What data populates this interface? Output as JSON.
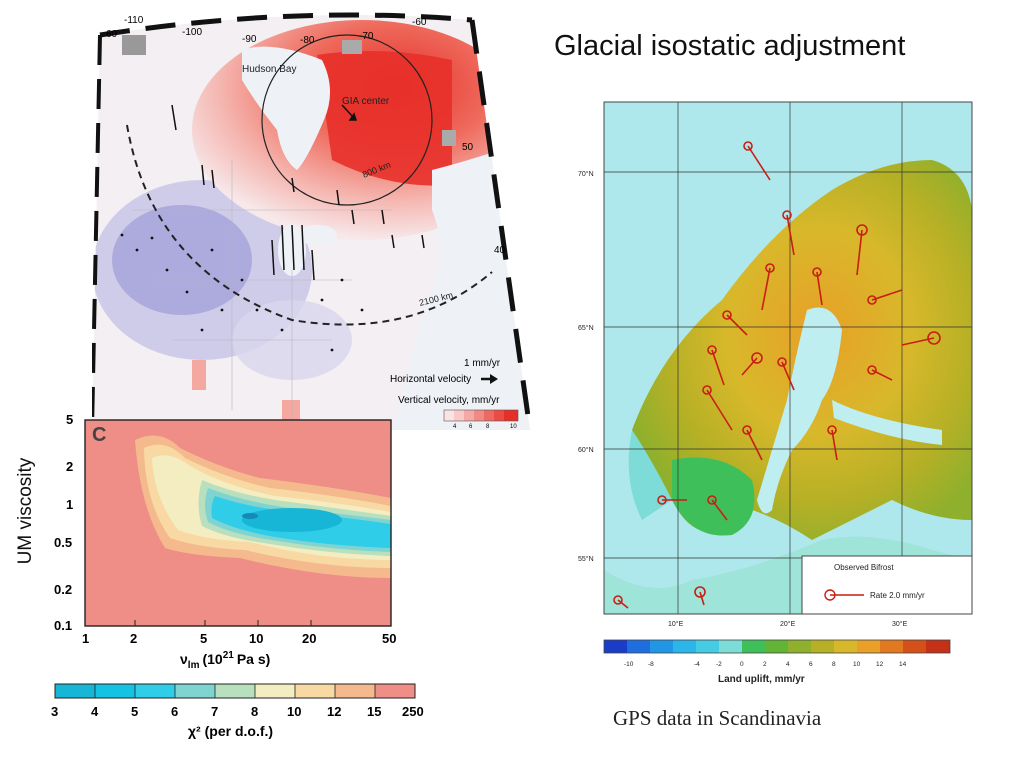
{
  "slide": {
    "title": "Glacial isostatic adjustment",
    "caption": "GPS data in Scandinavia",
    "side_label": "UM viscosity"
  },
  "north_america_map": {
    "lon_labels": [
      "-110",
      "-100",
      "-90",
      "-80",
      "-70",
      "-60"
    ],
    "lat_labels": [
      "60",
      "50",
      "40"
    ],
    "place_labels": [
      "Hudson Bay",
      "GIA center",
      "800 km",
      "2100 km"
    ],
    "legend": {
      "scale_text": "1 mm/yr",
      "horizontal": "Horizontal velocity",
      "vertical": "Vertical velocity, mm/yr",
      "ticks": [
        "4",
        "6",
        "8",
        "10"
      ]
    },
    "colors": {
      "uplift": "#e8302a",
      "subsidence": "#7c79c8",
      "land_neutral": "#f2eef0",
      "water": "#eef2f6"
    }
  },
  "viscosity_plot": {
    "panel_letter": "C",
    "x_ticks": [
      "1",
      "2",
      "5",
      "10",
      "20",
      "50"
    ],
    "y_ticks": [
      "5",
      "2",
      "1",
      "0.5",
      "0.2",
      "0.1"
    ],
    "x_label_main": "ν",
    "x_label_sub": "lm",
    "x_label_rest": "(10",
    "x_label_sup": "21",
    "x_label_end": "Pa s)",
    "colorbar_ticks": [
      "3",
      "4",
      "5",
      "6",
      "7",
      "8",
      "10",
      "12",
      "15",
      "250"
    ],
    "colorbar_label": "χ² (per d.o.f.)",
    "colorbar_colors": [
      "#18b6d6",
      "#15c2e2",
      "#2fcde7",
      "#7fd4d2",
      "#b8dfbe",
      "#f4edc2",
      "#f8d9a4",
      "#f5b98e",
      "#ef8e86"
    ]
  },
  "scandinavia_map": {
    "lat_labels": [
      "70°N",
      "65°N",
      "60°N",
      "55°N"
    ],
    "lon_labels": [
      "10°E",
      "20°E",
      "30°E"
    ],
    "legend_title": "Observed Bifrost",
    "legend_rate": "Rate 2.0 mm/yr",
    "colorbar_ticks": [
      "-10",
      "-8",
      "-4",
      "-2",
      "0",
      "2",
      "4",
      "6",
      "8",
      "10",
      "12",
      "14"
    ],
    "colorbar_label": "Land uplift, mm/yr",
    "colorbar_colors": [
      "#1a3cc8",
      "#1e6ee0",
      "#2196e6",
      "#2bb5e8",
      "#46cbe4",
      "#7ddcd8",
      "#3fbf5a",
      "#62b434",
      "#8eb02c",
      "#b6b026",
      "#d8b82a",
      "#e8a028",
      "#e27820",
      "#d45018",
      "#c43018"
    ]
  }
}
